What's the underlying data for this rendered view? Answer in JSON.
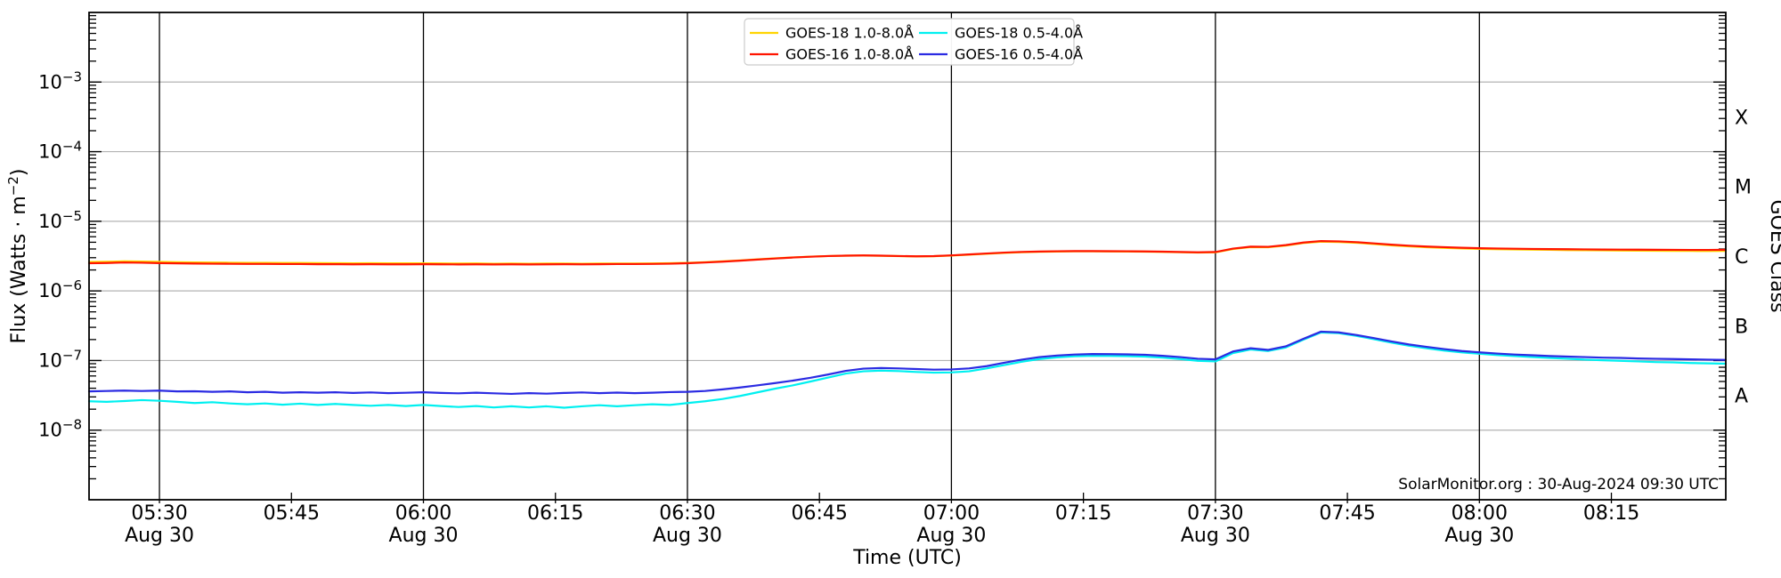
{
  "colors": {
    "background": "#ffffff",
    "spine": "#000000",
    "grid_h": "#b3b3b3",
    "grid_v": "#000000",
    "legend_border": "#cccccc",
    "text": "#000000"
  },
  "chart_data": {
    "type": "line",
    "title": "",
    "xlabel": "Time (UTC)",
    "ylabel": "Flux (Watts · m⁻²)",
    "ylabel_parts": {
      "pre": "Flux (Watts · m",
      "sup": "−2",
      "post": ")"
    },
    "ylabel_right": "GOES Class",
    "y_scale": "log",
    "ylim": [
      1e-09,
      0.01
    ],
    "x_axis_date": "Aug 30",
    "x_start_time": "05:22",
    "x_end_time": "08:28",
    "xlim_minutes": [
      322,
      508
    ],
    "x_minutes_start": 322,
    "x_minutes_step": 2,
    "x_major_ticks": [
      {
        "minute": 330,
        "label": "05:30",
        "sub_label": "Aug 30"
      },
      {
        "minute": 360,
        "label": "06:00",
        "sub_label": "Aug 30"
      },
      {
        "minute": 390,
        "label": "06:30",
        "sub_label": "Aug 30"
      },
      {
        "minute": 420,
        "label": "07:00",
        "sub_label": "Aug 30"
      },
      {
        "minute": 450,
        "label": "07:30",
        "sub_label": "Aug 30"
      },
      {
        "minute": 480,
        "label": "08:00",
        "sub_label": "Aug 30"
      }
    ],
    "x_minor_ticks": [
      {
        "minute": 345,
        "label": "05:45"
      },
      {
        "minute": 375,
        "label": "06:15"
      },
      {
        "minute": 405,
        "label": "06:45"
      },
      {
        "minute": 435,
        "label": "07:15"
      },
      {
        "minute": 465,
        "label": "07:45"
      },
      {
        "minute": 495,
        "label": "08:15"
      }
    ],
    "y_tick_base": "10",
    "y_major_tick_exponents": [
      -3,
      -4,
      -5,
      -6,
      -7,
      -8
    ],
    "y_tick_sup_labels": [
      "−3",
      "−4",
      "−5",
      "−6",
      "−7",
      "−8"
    ],
    "grid": {
      "h_gridline_exponents": [
        -3,
        -4,
        -5,
        -6,
        -7,
        -8
      ],
      "v_gridline_minutes": [
        330,
        360,
        390,
        420,
        450,
        480
      ]
    },
    "goes_class_labels": [
      {
        "label": "X",
        "value": 0.000316
      },
      {
        "label": "M",
        "value": 3.16e-05
      },
      {
        "label": "C",
        "value": 3.16e-06
      },
      {
        "label": "B",
        "value": 3.16e-07
      },
      {
        "label": "A",
        "value": 3.16e-08
      }
    ],
    "legend": {
      "position": "top-center",
      "columns": 2
    },
    "annotation": "SolarMonitor.org : 30-Aug-2024 09:30 UTC",
    "series": [
      {
        "name": "GOES-18 1.0-8.0Å",
        "color": "#ffd400",
        "scale": 1e-06,
        "values": [
          2.6,
          2.62,
          2.66,
          2.64,
          2.61,
          2.59,
          2.57,
          2.56,
          2.54,
          2.53,
          2.53,
          2.52,
          2.52,
          2.51,
          2.5,
          2.49,
          2.5,
          2.49,
          2.49,
          2.49,
          2.48,
          2.47,
          2.48,
          2.46,
          2.47,
          2.46,
          2.47,
          2.47,
          2.46,
          2.47,
          2.47,
          2.47,
          2.48,
          2.5,
          2.53,
          2.59,
          2.66,
          2.74,
          2.84,
          2.94,
          3.03,
          3.11,
          3.17,
          3.21,
          3.22,
          3.2,
          3.16,
          3.13,
          3.15,
          3.22,
          3.32,
          3.42,
          3.52,
          3.6,
          3.65,
          3.68,
          3.7,
          3.7,
          3.69,
          3.68,
          3.66,
          3.63,
          3.59,
          3.55,
          3.58,
          4.0,
          4.26,
          4.24,
          4.48,
          4.87,
          5.1,
          5.05,
          4.92,
          4.72,
          4.52,
          4.36,
          4.24,
          4.15,
          4.07,
          4.01,
          3.97,
          3.94,
          3.91,
          3.89,
          3.86,
          3.84,
          3.82,
          3.8,
          3.79,
          3.77,
          3.76,
          3.75,
          3.74,
          3.75
        ]
      },
      {
        "name": "GOES-16 1.0-8.0Å",
        "color": "#ff1400",
        "scale": 1e-06,
        "values": [
          2.5,
          2.52,
          2.56,
          2.54,
          2.51,
          2.49,
          2.47,
          2.46,
          2.45,
          2.44,
          2.44,
          2.43,
          2.43,
          2.42,
          2.42,
          2.41,
          2.42,
          2.41,
          2.41,
          2.42,
          2.41,
          2.4,
          2.41,
          2.4,
          2.41,
          2.4,
          2.41,
          2.42,
          2.41,
          2.42,
          2.43,
          2.43,
          2.44,
          2.46,
          2.5,
          2.56,
          2.63,
          2.72,
          2.82,
          2.92,
          3.02,
          3.1,
          3.17,
          3.21,
          3.23,
          3.21,
          3.17,
          3.14,
          3.16,
          3.24,
          3.34,
          3.45,
          3.55,
          3.63,
          3.68,
          3.71,
          3.73,
          3.73,
          3.72,
          3.71,
          3.69,
          3.66,
          3.62,
          3.58,
          3.62,
          4.05,
          4.32,
          4.3,
          4.55,
          4.95,
          5.2,
          5.15,
          5.02,
          4.82,
          4.62,
          4.46,
          4.34,
          4.25,
          4.17,
          4.11,
          4.07,
          4.04,
          4.01,
          3.99,
          3.97,
          3.95,
          3.93,
          3.92,
          3.91,
          3.9,
          3.89,
          3.88,
          3.88,
          3.9
        ]
      },
      {
        "name": "GOES-18 0.5-4.0Å",
        "color": "#00f0f0",
        "scale": 1e-08,
        "values": [
          2.6,
          2.55,
          2.62,
          2.7,
          2.64,
          2.55,
          2.45,
          2.52,
          2.42,
          2.35,
          2.42,
          2.32,
          2.4,
          2.3,
          2.38,
          2.3,
          2.24,
          2.3,
          2.22,
          2.3,
          2.22,
          2.15,
          2.22,
          2.12,
          2.2,
          2.12,
          2.2,
          2.1,
          2.2,
          2.28,
          2.2,
          2.28,
          2.35,
          2.3,
          2.45,
          2.6,
          2.8,
          3.1,
          3.5,
          3.95,
          4.4,
          5.0,
          5.7,
          6.5,
          7.0,
          7.15,
          7.05,
          6.85,
          6.7,
          6.75,
          7.0,
          7.7,
          8.6,
          9.6,
          10.5,
          11.1,
          11.5,
          11.7,
          11.65,
          11.55,
          11.4,
          11.0,
          10.5,
          9.9,
          9.7,
          12.8,
          14.4,
          13.7,
          15.4,
          19.9,
          25.3,
          24.7,
          22.6,
          20.3,
          18.1,
          16.3,
          15.0,
          13.9,
          13.1,
          12.5,
          12.0,
          11.6,
          11.2,
          10.9,
          10.6,
          10.3,
          10.1,
          9.9,
          9.7,
          9.5,
          9.4,
          9.2,
          9.1,
          9.0
        ]
      },
      {
        "name": "GOES-16 0.5-4.0Å",
        "color": "#2b2be2",
        "scale": 1e-08,
        "values": [
          3.6,
          3.65,
          3.7,
          3.65,
          3.7,
          3.6,
          3.62,
          3.55,
          3.6,
          3.5,
          3.55,
          3.45,
          3.5,
          3.45,
          3.5,
          3.42,
          3.48,
          3.4,
          3.44,
          3.5,
          3.42,
          3.38,
          3.45,
          3.38,
          3.32,
          3.4,
          3.34,
          3.42,
          3.48,
          3.4,
          3.46,
          3.4,
          3.45,
          3.52,
          3.55,
          3.65,
          3.85,
          4.1,
          4.4,
          4.75,
          5.15,
          5.65,
          6.3,
          7.1,
          7.65,
          7.8,
          7.7,
          7.55,
          7.4,
          7.45,
          7.7,
          8.3,
          9.3,
          10.3,
          11.2,
          11.8,
          12.2,
          12.4,
          12.35,
          12.25,
          12.1,
          11.7,
          11.2,
          10.6,
          10.4,
          13.5,
          15.0,
          14.2,
          16.0,
          20.5,
          26.0,
          25.4,
          23.3,
          21.0,
          18.8,
          17.0,
          15.7,
          14.6,
          13.7,
          13.1,
          12.6,
          12.2,
          11.9,
          11.6,
          11.4,
          11.2,
          11.0,
          10.9,
          10.7,
          10.6,
          10.5,
          10.4,
          10.3,
          10.2
        ]
      }
    ]
  }
}
